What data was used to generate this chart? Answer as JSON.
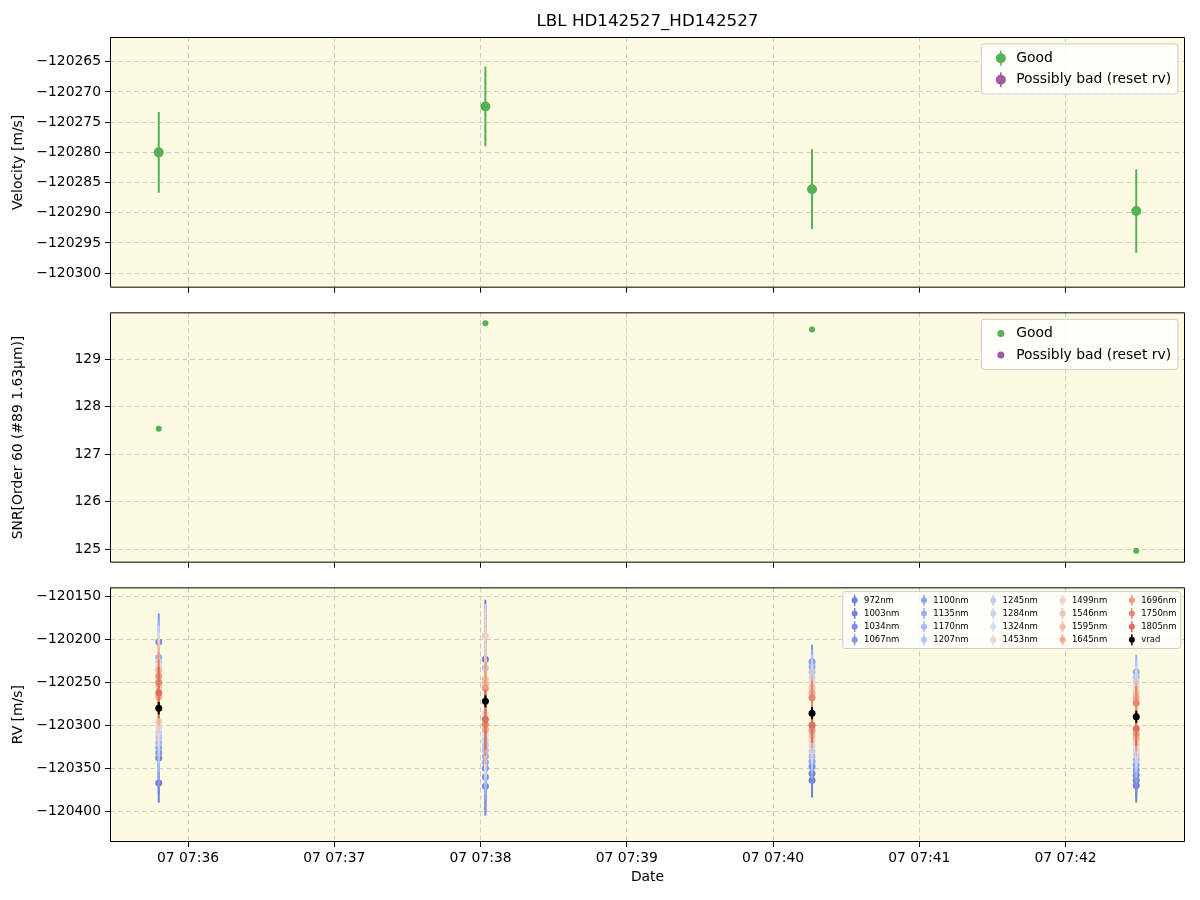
{
  "chart_data": [
    {
      "type": "scatter",
      "title": "LBL HD142527_HD142527",
      "ylabel": "Velocity [m/s]",
      "x": [
        "--01-07T07:35:48",
        "--01-07T07:38:02",
        "--01-07T07:40:16",
        "--01-07T07:42:29"
      ],
      "series": [
        {
          "name": "Good",
          "color": "#55b155",
          "values": [
            -120280.0,
            -120272.4,
            -120286.1,
            -120289.7
          ],
          "errors": [
            6.7,
            6.6,
            6.6,
            6.9
          ]
        },
        {
          "name": "Possibly bad (reset rv)",
          "color": "#a657a6",
          "values": [
            null,
            null,
            null,
            null
          ]
        }
      ],
      "xlim": [
        "--01-07T07:35:28",
        "--01-07T07:42:49"
      ],
      "xticks": [
        {
          "value": "--01-07T07:36",
          "label": null
        },
        {
          "value": "--01-07T07:37",
          "label": null
        },
        {
          "value": "--01-07T07:38",
          "label": null
        },
        {
          "value": "--01-07T07:39",
          "label": null
        },
        {
          "value": "--01-07T07:40",
          "label": null
        },
        {
          "value": "--01-07T07:41",
          "label": null
        },
        {
          "value": "--01-07T07:42",
          "label": null
        }
      ],
      "ylim": [
        -120302.4,
        -120260.9
      ],
      "yticks": [
        {
          "value": -120300,
          "label": "−120300"
        },
        {
          "value": -120295,
          "label": "−120295"
        },
        {
          "value": -120290,
          "label": "−120290"
        },
        {
          "value": -120285,
          "label": "−120285"
        },
        {
          "value": -120280,
          "label": "−120280"
        },
        {
          "value": -120275,
          "label": "−120275"
        },
        {
          "value": -120270,
          "label": "−120270"
        },
        {
          "value": -120265,
          "label": "−120265"
        }
      ],
      "grid": true,
      "legend": "top right",
      "marker": "circle",
      "tick_labels": "y"
    },
    {
      "type": "scatter",
      "ylabel": "SNR[Order 60 (#89 1.63μm)]",
      "x": [
        "--01-07T07:35:48",
        "--01-07T07:38:02",
        "--01-07T07:40:16",
        "--01-07T07:42:29"
      ],
      "series": [
        {
          "name": "Good",
          "color": "#55b155",
          "values": [
            127.54,
            129.76,
            129.63,
            124.97
          ]
        },
        {
          "name": "Possibly bad (reset rv)",
          "color": "#a657a6",
          "values": [
            null,
            null,
            null,
            null
          ]
        }
      ],
      "xlim": [
        "--01-07T07:35:28",
        "--01-07T07:42:49"
      ],
      "xticks": [
        {
          "value": "--01-07T07:36",
          "label": null
        },
        {
          "value": "--01-07T07:37",
          "label": null
        },
        {
          "value": "--01-07T07:38",
          "label": null
        },
        {
          "value": "--01-07T07:39",
          "label": null
        },
        {
          "value": "--01-07T07:40",
          "label": null
        },
        {
          "value": "--01-07T07:41",
          "label": null
        },
        {
          "value": "--01-07T07:42",
          "label": null
        }
      ],
      "ylim": [
        124.72,
        129.99
      ],
      "yticks": [
        125,
        126,
        127,
        128,
        129
      ],
      "grid": true,
      "legend": "top right",
      "marker": "circle",
      "tick_labels": "y"
    },
    {
      "type": "scatter",
      "xlabel": "Date",
      "ylabel": "RV [m/s]",
      "x": [
        "--01-07T07:35:48",
        "--01-07T07:38:02",
        "--01-07T07:40:16",
        "--01-07T07:42:29"
      ],
      "series": [
        {
          "name": "972nm",
          "color": "#7080d8",
          "values": [
            -120367,
            -120223,
            -120364,
            -120370
          ],
          "errors": [
            23,
            69,
            20,
            20
          ]
        },
        {
          "name": "1003nm",
          "color": "#7585dc",
          "values": [
            -120338,
            -120371,
            -120356,
            -120364
          ],
          "errors": [
            43,
            34,
            20,
            20
          ]
        },
        {
          "name": "1034nm",
          "color": "#7b8ee6",
          "values": [
            -120203,
            -120360,
            -120348,
            -120358
          ],
          "errors": [
            33,
            39,
            20,
            20
          ]
        },
        {
          "name": "1067nm",
          "color": "#8498ea",
          "values": [
            -120332,
            -120350,
            -120226,
            -120352
          ],
          "errors": [
            40,
            43,
            20,
            20
          ]
        },
        {
          "name": "1100nm",
          "color": "#8fa6f0",
          "values": [
            -120326,
            -120343,
            -120342,
            -120346
          ],
          "errors": [
            37,
            44,
            20,
            20
          ]
        },
        {
          "name": "1135nm",
          "color": "#99b0f4",
          "values": [
            -120221,
            -120336,
            -120232,
            -120238
          ],
          "errors": [
            45,
            45,
            20,
            20
          ]
        },
        {
          "name": "1170nm",
          "color": "#a4bcf7",
          "values": [
            -120320,
            -120329,
            -120336,
            -120340
          ],
          "errors": [
            34,
            46,
            20,
            20
          ]
        },
        {
          "name": "1207nm",
          "color": "#b0c8f8",
          "values": [
            -120314,
            -120323,
            -120238,
            -120244
          ],
          "errors": [
            31,
            46,
            20,
            20
          ]
        },
        {
          "name": "1245nm",
          "color": "#bcd0f6",
          "values": [
            -120226,
            -120233,
            -120330,
            -120334
          ],
          "errors": [
            42,
            74,
            20,
            20
          ]
        },
        {
          "name": "1284nm",
          "color": "#c6d6f2",
          "values": [
            -120308,
            -120317,
            -120244,
            -120250
          ],
          "errors": [
            28,
            46,
            20,
            20
          ]
        },
        {
          "name": "1324nm",
          "color": "#d2dcee",
          "values": [
            -120302,
            -120311,
            -120324,
            -120328
          ],
          "errors": [
            25,
            46,
            20,
            20
          ]
        },
        {
          "name": "1453nm",
          "color": "#e8d8d2",
          "values": [
            -120231,
            -120286,
            -120250,
            -120256
          ],
          "errors": [
            39,
            65,
            20,
            20
          ]
        },
        {
          "name": "1499nm",
          "color": "#f0d0c4",
          "values": [
            -120296,
            -120196,
            -120318,
            -120322
          ],
          "errors": [
            22,
            32,
            20,
            20
          ]
        },
        {
          "name": "1546nm",
          "color": "#f4c4b2",
          "values": [
            -120255,
            -120246,
            -120256,
            -120262
          ],
          "errors": [
            54,
            30,
            20,
            20
          ]
        },
        {
          "name": "1595nm",
          "color": "#f5b8a0",
          "values": [
            -120236,
            -120252,
            -120312,
            -120316
          ],
          "errors": [
            30,
            30,
            20,
            20
          ]
        },
        {
          "name": "1645nm",
          "color": "#f4aa8c",
          "values": [
            -120267,
            -120305,
            -120262,
            -120268
          ],
          "errors": [
            33,
            40,
            20,
            20
          ]
        },
        {
          "name": "1696nm",
          "color": "#ee9a7c",
          "values": [
            -120243,
            -120257,
            -120306,
            -120310
          ],
          "errors": [
            28,
            30,
            20,
            20
          ]
        },
        {
          "name": "1750nm",
          "color": "#e8886c",
          "values": [
            -120250,
            -120299,
            -120268,
            -120274
          ],
          "errors": [
            26,
            36,
            20,
            20
          ]
        },
        {
          "name": "1805nm",
          "color": "#dc705c",
          "values": [
            -120262,
            -120293,
            -120300,
            -120304
          ],
          "errors": [
            30,
            35,
            20,
            20
          ]
        },
        {
          "name": "vrad",
          "color": "#000000",
          "values": [
            -120280,
            -120272,
            -120286,
            -120290
          ],
          "errors": [
            7,
            7,
            7,
            7
          ]
        }
      ],
      "xlim": [
        "--01-07T07:35:28",
        "--01-07T07:42:49"
      ],
      "xticks": [
        {
          "value": "--01-07T07:36",
          "label": "07 07:36"
        },
        {
          "value": "--01-07T07:37",
          "label": "07 07:37"
        },
        {
          "value": "--01-07T07:38",
          "label": "07 07:38"
        },
        {
          "value": "--01-07T07:39",
          "label": "07 07:39"
        },
        {
          "value": "--01-07T07:40",
          "label": "07 07:40"
        },
        {
          "value": "--01-07T07:41",
          "label": "07 07:41"
        },
        {
          "value": "--01-07T07:42",
          "label": "07 07:42"
        }
      ],
      "ylim": [
        -120435.7,
        -120139.5
      ],
      "yticks": [
        {
          "value": -120400,
          "label": "−120400"
        },
        {
          "value": -120350,
          "label": "−120350"
        },
        {
          "value": -120300,
          "label": "−120300"
        },
        {
          "value": -120250,
          "label": "−120250"
        },
        {
          "value": -120200,
          "label": "−120200"
        },
        {
          "value": -120150,
          "label": "−120150"
        }
      ],
      "grid": true,
      "legend": "top right",
      "marker": "circle"
    }
  ]
}
